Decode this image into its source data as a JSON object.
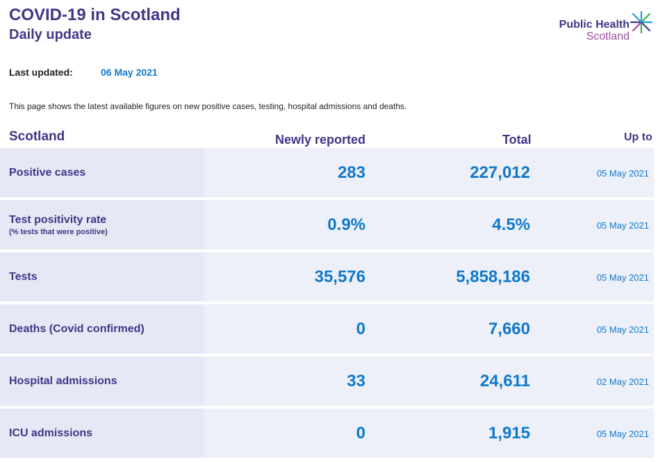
{
  "header": {
    "title": "COVID-19 in Scotland",
    "subtitle": "Daily update",
    "logo_line1": "Public Health",
    "logo_line2": "Scotland"
  },
  "updated": {
    "label": "Last updated:",
    "value": "06 May 2021"
  },
  "intro": "This page shows the latest available figures on new positive cases, testing, hospital admissions and deaths.",
  "table": {
    "headers": {
      "region": "Scotland",
      "newly": "Newly reported",
      "total": "Total",
      "upto": "Up to"
    },
    "rows": [
      {
        "label": "Positive cases",
        "sublabel": "",
        "newly": "283",
        "total": "227,012",
        "upto": "05 May 2021"
      },
      {
        "label": "Test positivity rate",
        "sublabel": "(% tests that were positive)",
        "newly": "0.9%",
        "total": "4.5%",
        "upto": "05 May 2021"
      },
      {
        "label": "Tests",
        "sublabel": "",
        "newly": "35,576",
        "total": "5,858,186",
        "upto": "05 May 2021"
      },
      {
        "label": "Deaths (Covid confirmed)",
        "sublabel": "",
        "newly": "0",
        "total": "7,660",
        "upto": "05 May 2021"
      },
      {
        "label": "Hospital admissions",
        "sublabel": "",
        "newly": "33",
        "total": "24,611",
        "upto": "02 May 2021"
      },
      {
        "label": "ICU admissions",
        "sublabel": "",
        "newly": "0",
        "total": "1,915",
        "upto": "05 May 2021"
      }
    ]
  },
  "colors": {
    "heading": "#3f3685",
    "accent": "#1078cc",
    "logo_secondary": "#9b4a9f",
    "row_label_bg": "#e6e9f5",
    "row_bg": "#edf0f8"
  }
}
